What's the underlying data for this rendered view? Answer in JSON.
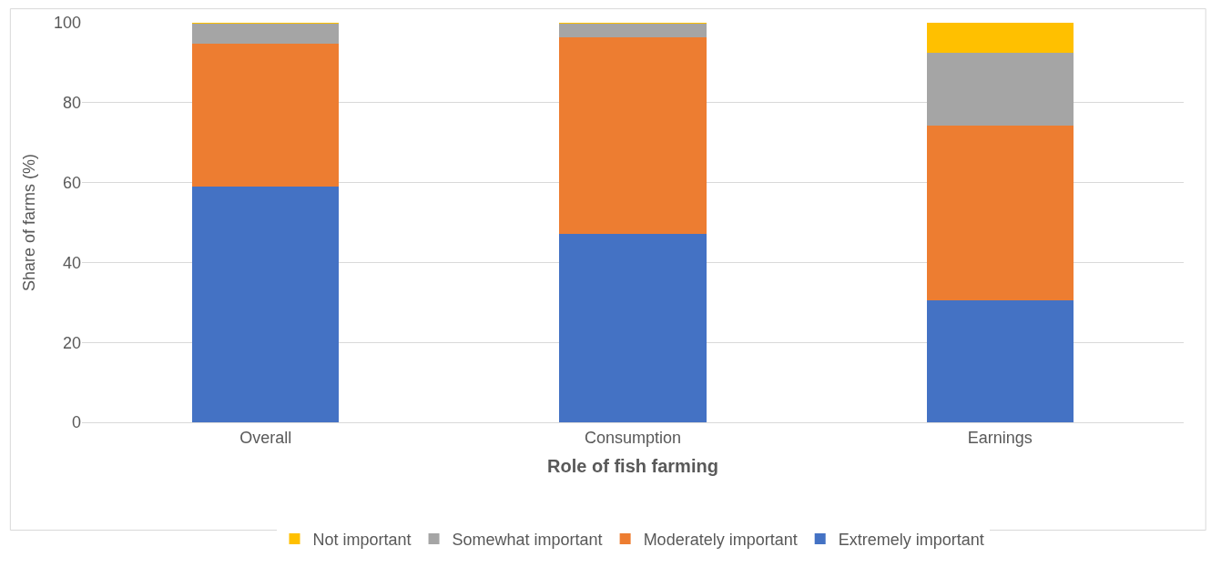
{
  "chart_data": {
    "type": "bar",
    "stacked": true,
    "xlabel": "Role of fish farming",
    "ylabel": "Share of farms (%)",
    "categories": [
      "Overall",
      "Consumption",
      "Earnings"
    ],
    "series": [
      {
        "name": "Extremely important",
        "color": "#4472c4",
        "values": [
          59.1,
          47.1,
          30.5
        ]
      },
      {
        "name": "Moderately important",
        "color": "#ed7d31",
        "values": [
          35.7,
          49.3,
          43.7
        ]
      },
      {
        "name": "Somewhat important",
        "color": "#a5a5a5",
        "values": [
          5.0,
          3.4,
          18.2
        ]
      },
      {
        "name": "Not important",
        "color": "#ffc000",
        "values": [
          0.2,
          0.2,
          7.6
        ]
      }
    ],
    "ylim": [
      0,
      100
    ],
    "yticks": [
      0,
      20,
      40,
      60,
      80,
      100
    ],
    "grid": "y",
    "legend": "bottom"
  }
}
